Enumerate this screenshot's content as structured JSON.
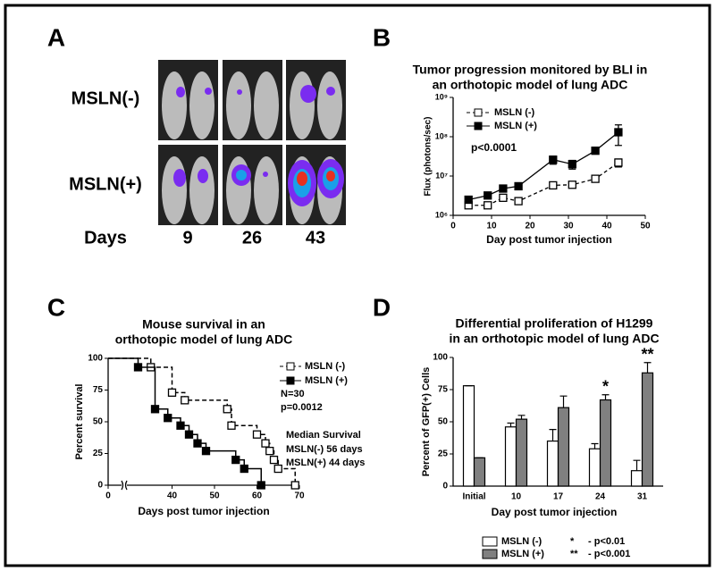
{
  "panel_labels": [
    "A",
    "B",
    "C",
    "D"
  ],
  "panel_a": {
    "rows": [
      "MSLN(-)",
      "MSLN(+)"
    ],
    "days_label": "Days",
    "days": [
      9,
      26,
      43
    ]
  },
  "chart_data": [
    {
      "type": "line",
      "title": [
        "Tumor progression monitored by BLI in",
        "an orthotopic model of lung ADC"
      ],
      "xlabel": "Day post tumor injection",
      "ylabel": "Flux (photons/sec)",
      "log_y": true,
      "xlim": [
        0,
        50
      ],
      "xticks": [
        0,
        10,
        20,
        30,
        40,
        50
      ],
      "ylim": [
        1000000,
        1000000000
      ],
      "yticks": [
        {
          "value": 1000000,
          "label": "10⁶"
        },
        {
          "value": 10000000,
          "label": "10⁷"
        },
        {
          "value": 100000000,
          "label": "10⁸"
        },
        {
          "value": 1000000000,
          "label": "10⁹"
        }
      ],
      "annotation": "p<0.0001",
      "series": [
        {
          "name": "MSLN (-)",
          "color": "#000000",
          "line_style": "dashed",
          "marker_fill": "#ffffff",
          "x": [
            4,
            9,
            13,
            17,
            26,
            31,
            37,
            43
          ],
          "values": [
            1800000,
            1800000,
            2800000,
            2300000,
            5800000,
            6000000,
            8500000,
            22000000
          ],
          "errors": [
            200000,
            200000,
            300000,
            300000,
            600000,
            600000,
            1000000,
            5000000
          ]
        },
        {
          "name": "MSLN (+)",
          "color": "#000000",
          "line_style": "solid",
          "marker_fill": "#000000",
          "x": [
            4,
            9,
            13,
            17,
            26,
            31,
            37,
            43
          ],
          "values": [
            2500000,
            3200000,
            4800000,
            5500000,
            26000000,
            20000000,
            44000000,
            130000000
          ],
          "errors": [
            300000,
            400000,
            800000,
            1000000,
            6000000,
            5000000,
            7000000,
            70000000
          ]
        }
      ]
    },
    {
      "type": "step",
      "title": [
        "Mouse survival in an",
        "orthotopic model of lung ADC"
      ],
      "xlabel": "Days post tumor injection",
      "ylabel": "Percent survival",
      "xlim": [
        0,
        70
      ],
      "x_break": [
        2,
        30
      ],
      "xticks": [
        0,
        40,
        50,
        60,
        70
      ],
      "ylim": [
        0,
        100
      ],
      "yticks": [
        0,
        25,
        50,
        75,
        100
      ],
      "annotations": [
        "N=30",
        "p=0.0012",
        "Median Survival",
        "MSLN(-)  56 days",
        "MSLN(+) 44 days"
      ],
      "series": [
        {
          "name": "MSLN (-)",
          "color": "#000000",
          "line_style": "dashed",
          "marker_fill": "#ffffff",
          "x": [
            0,
            35,
            40,
            43,
            53,
            54,
            60,
            62,
            63,
            64,
            65,
            69
          ],
          "values": [
            100,
            93,
            73,
            67,
            60,
            47,
            40,
            33,
            27,
            20,
            13,
            0
          ]
        },
        {
          "name": "MSLN (+)",
          "color": "#000000",
          "line_style": "solid",
          "marker_fill": "#000000",
          "x": [
            0,
            32,
            36,
            39,
            42,
            44,
            46,
            48,
            55,
            57,
            61
          ],
          "values": [
            100,
            93,
            60,
            53,
            47,
            40,
            33,
            27,
            20,
            13,
            0
          ]
        }
      ]
    },
    {
      "type": "bar",
      "title": [
        "Differential proliferation of H1299",
        "in an orthotopic model of lung ADC"
      ],
      "xlabel": "Day post tumor injection",
      "ylabel": "Percent of GFP(+) Cells",
      "categories": [
        "Initial",
        "10",
        "17",
        "24",
        "31"
      ],
      "ylim": [
        0,
        100
      ],
      "yticks": [
        0,
        25,
        50,
        75,
        100
      ],
      "significance": [
        null,
        null,
        null,
        "*",
        "**"
      ],
      "legend_notes": [
        [
          "*",
          "- p<0.01"
        ],
        [
          "**",
          "- p<0.001"
        ]
      ],
      "series": [
        {
          "name": "MSLN (-)",
          "color": "#ffffff",
          "values": [
            78,
            46,
            35,
            29,
            12
          ],
          "errors": [
            0,
            3,
            9,
            4,
            8
          ]
        },
        {
          "name": "MSLN (+)",
          "color": "#808080",
          "values": [
            22,
            52,
            61,
            67,
            88
          ],
          "errors": [
            0,
            3,
            9,
            4,
            8
          ]
        }
      ]
    }
  ]
}
